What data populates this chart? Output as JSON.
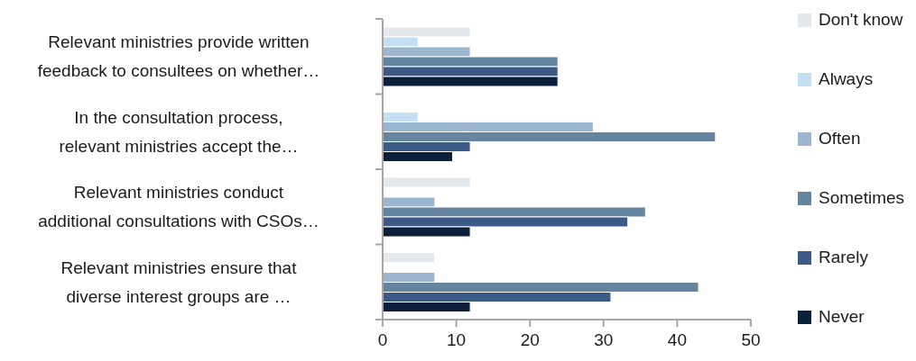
{
  "chart_data": {
    "type": "bar",
    "orientation": "horizontal",
    "categories": [
      "Relevant ministries provide written\nfeedback to consultees on whether…",
      "In the consultation process,\nrelevant ministries accept the…",
      "Relevant ministries conduct\nadditional consultations with CSOs…",
      "Relevant ministries ensure that\ndiverse interest groups are …"
    ],
    "series": [
      {
        "name": "Don't know",
        "color": "#e3e8ed",
        "values": [
          11.9,
          null,
          11.9,
          7.1
        ]
      },
      {
        "name": "Always",
        "color": "#c5dff2",
        "values": [
          4.8,
          4.8,
          null,
          null
        ]
      },
      {
        "name": "Often",
        "color": "#9cb6cf",
        "values": [
          11.9,
          28.6,
          7.1,
          7.1
        ]
      },
      {
        "name": "Sometimes",
        "color": "#64849f",
        "values": [
          23.8,
          45.2,
          35.7,
          42.9
        ]
      },
      {
        "name": "Rarely",
        "color": "#3c5a85",
        "values": [
          23.8,
          11.9,
          33.3,
          31.0
        ]
      },
      {
        "name": "Never",
        "color": "#0c1f3b",
        "values": [
          23.8,
          9.5,
          11.9,
          11.9
        ]
      }
    ],
    "xlim": [
      0,
      50
    ],
    "xticks": [
      0,
      10,
      20,
      30,
      40,
      50
    ],
    "legend": "right"
  }
}
